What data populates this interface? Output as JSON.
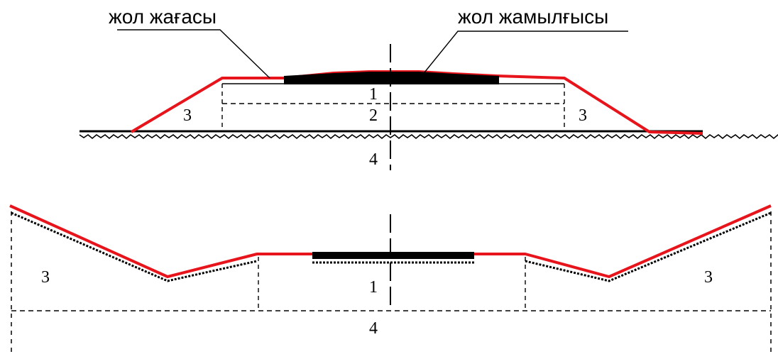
{
  "labels": {
    "shoulder": "жол жағасы",
    "pavement": "жол жамылғысы"
  },
  "embankment": {
    "zone_1": "1",
    "zone_2": "2",
    "zone_3_left": "3",
    "zone_3_right": "3",
    "zone_4": "4"
  },
  "cutting": {
    "zone_1": "1",
    "zone_3_left": "3",
    "zone_3_right": "3",
    "zone_4": "4"
  },
  "colors": {
    "surface_line": "#e8141c",
    "pavement": "#000000",
    "lines": "#000000"
  }
}
